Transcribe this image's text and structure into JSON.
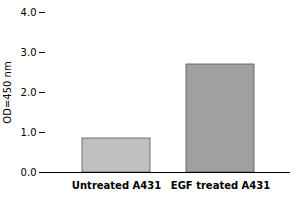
{
  "chart_data": {
    "type": "bar",
    "categories": [
      "Untreated A431",
      "EGF treated A431"
    ],
    "values": [
      0.85,
      2.7
    ],
    "colors": [
      "#c0c0c0",
      "#a0a0a0"
    ],
    "ylabel": "OD=450 nm",
    "ylim": [
      0,
      4
    ],
    "yticks": [
      0,
      1,
      2,
      3,
      4
    ]
  }
}
